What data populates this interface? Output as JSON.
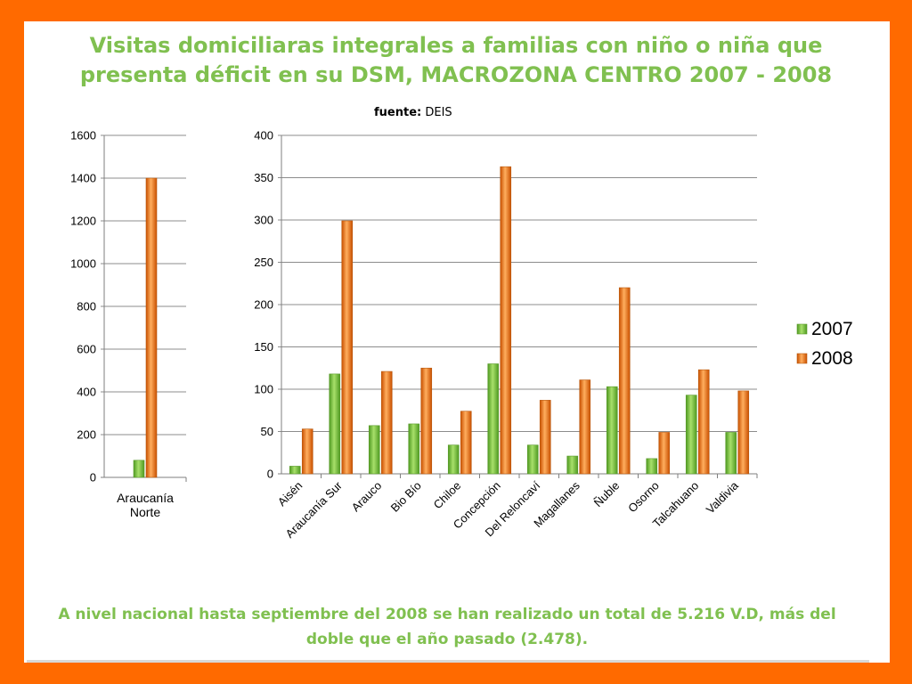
{
  "slide": {
    "title": "Visitas domiciliaras integrales a familias con niño o niña que presenta déficit en su DSM, MACROZONA CENTRO 2007 - 2008",
    "source_label": "fuente:",
    "source_value": "DEIS",
    "footer": "A nivel nacional hasta septiembre del 2008 se han realizado un total de 5.216 V.D, más del doble que el año pasado (2.478)."
  },
  "colors": {
    "frame": "#ff6a00",
    "title_text": "#80c050",
    "series_2007": "#78c43a",
    "series_2008": "#f07a1c"
  },
  "chart_data": [
    {
      "type": "bar",
      "categories": [
        "Araucanía Norte"
      ],
      "series": [
        {
          "name": "2007",
          "values": [
            80
          ]
        },
        {
          "name": "2008",
          "values": [
            1400
          ]
        }
      ],
      "ylim": [
        0,
        1600
      ],
      "yticks": [
        0,
        200,
        400,
        600,
        800,
        1000,
        1200,
        1400,
        1600
      ],
      "grid": true
    },
    {
      "type": "bar",
      "categories": [
        "Aisén",
        "Araucanía Sur",
        "Arauco",
        "Bio Bío",
        "Chiloe",
        "Concepción",
        "Del Reloncaví",
        "Magallanes",
        "Ñuble",
        "Osorno",
        "Talcahuano",
        "Valdivia"
      ],
      "series": [
        {
          "name": "2007",
          "values": [
            9,
            118,
            57,
            59,
            34,
            130,
            34,
            21,
            103,
            18,
            93,
            49
          ]
        },
        {
          "name": "2008",
          "values": [
            53,
            299,
            121,
            125,
            74,
            363,
            87,
            111,
            220,
            49,
            123,
            98
          ]
        }
      ],
      "ylim": [
        0,
        400
      ],
      "yticks": [
        0,
        50,
        100,
        150,
        200,
        250,
        300,
        350,
        400
      ],
      "grid": true,
      "legend": "right"
    }
  ]
}
